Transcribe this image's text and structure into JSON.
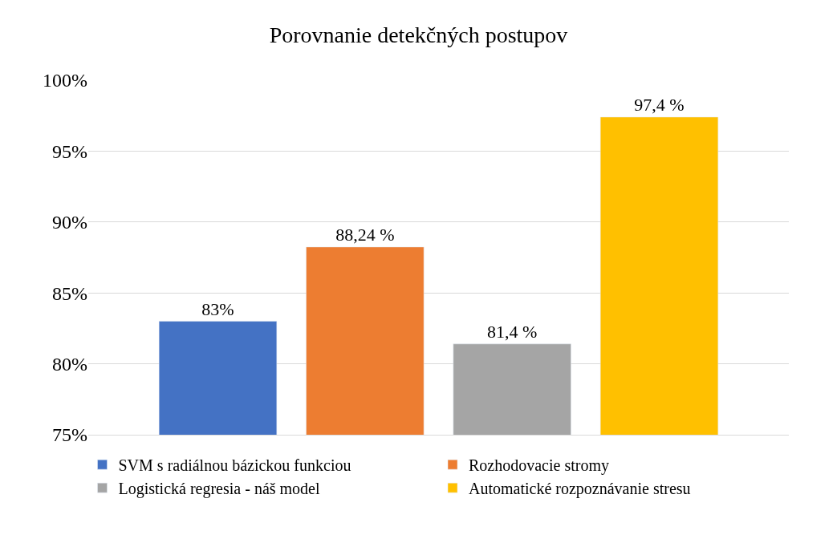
{
  "chart_data": {
    "type": "bar",
    "title": "Porovnanie detekčných postupov",
    "categories": [
      null
    ],
    "series": [
      {
        "name": "SVM s radiálnou bázickou funkciou",
        "color": "#4472c4",
        "values": [
          83
        ],
        "value_labels": [
          "83%"
        ]
      },
      {
        "name": "Rozhodovacie stromy",
        "color": "#ed7d31",
        "values": [
          88.24
        ],
        "value_labels": [
          "88,24 %"
        ]
      },
      {
        "name": "Logistická regresia - náš model",
        "color": "#a5a5a5",
        "values": [
          81.4
        ],
        "value_labels": [
          "81,4 %"
        ]
      },
      {
        "name": "Automatické rozpoznávanie stresu",
        "color": "#ffc000",
        "values": [
          97.4
        ],
        "value_labels": [
          "97,4 %"
        ]
      }
    ],
    "ylim": [
      75,
      100
    ],
    "yticks": [
      {
        "value": 75,
        "label": "75%"
      },
      {
        "value": 80,
        "label": "80%"
      },
      {
        "value": 85,
        "label": "85%"
      },
      {
        "value": 90,
        "label": "90%"
      },
      {
        "value": 95,
        "label": "95%"
      },
      {
        "value": 100,
        "label": "100%"
      }
    ],
    "grid": "y",
    "legend": "bottom"
  }
}
